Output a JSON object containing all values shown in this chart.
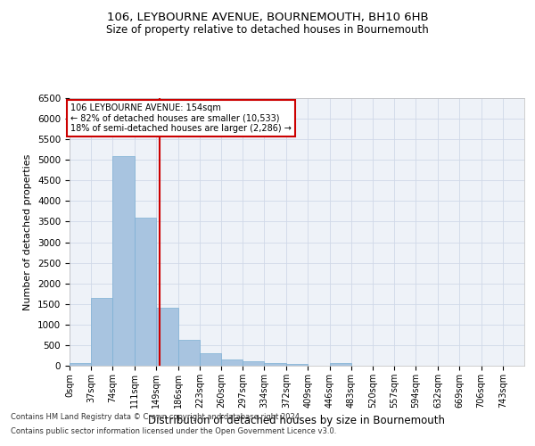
{
  "title": "106, LEYBOURNE AVENUE, BOURNEMOUTH, BH10 6HB",
  "subtitle": "Size of property relative to detached houses in Bournemouth",
  "xlabel": "Distribution of detached houses by size in Bournemouth",
  "ylabel": "Number of detached properties",
  "footnote1": "Contains HM Land Registry data © Crown copyright and database right 2024.",
  "footnote2": "Contains public sector information licensed under the Open Government Licence v3.0.",
  "annotation_title": "106 LEYBOURNE AVENUE: 154sqm",
  "annotation_line1": "← 82% of detached houses are smaller (10,533)",
  "annotation_line2": "18% of semi-detached houses are larger (2,286) →",
  "property_size": 154,
  "bar_labels": [
    "0sqm",
    "37sqm",
    "74sqm",
    "111sqm",
    "149sqm",
    "186sqm",
    "223sqm",
    "260sqm",
    "297sqm",
    "334sqm",
    "372sqm",
    "409sqm",
    "446sqm",
    "483sqm",
    "520sqm",
    "557sqm",
    "594sqm",
    "632sqm",
    "669sqm",
    "706sqm",
    "743sqm"
  ],
  "bar_values": [
    75,
    1650,
    5100,
    3600,
    1400,
    620,
    310,
    155,
    100,
    60,
    40,
    10,
    70,
    0,
    0,
    0,
    0,
    0,
    0,
    0,
    0
  ],
  "bin_edges": [
    0,
    37,
    74,
    111,
    149,
    186,
    223,
    260,
    297,
    334,
    372,
    409,
    446,
    483,
    520,
    557,
    594,
    632,
    669,
    706,
    743,
    780
  ],
  "bar_color": "#a8c4e0",
  "bar_edge_color": "#7bafd4",
  "vline_x": 154,
  "vline_color": "#cc0000",
  "grid_color": "#d0d8e8",
  "background_color": "#eef2f8",
  "ylim": [
    0,
    6500
  ],
  "yticks": [
    0,
    500,
    1000,
    1500,
    2000,
    2500,
    3000,
    3500,
    4000,
    4500,
    5000,
    5500,
    6000,
    6500
  ]
}
